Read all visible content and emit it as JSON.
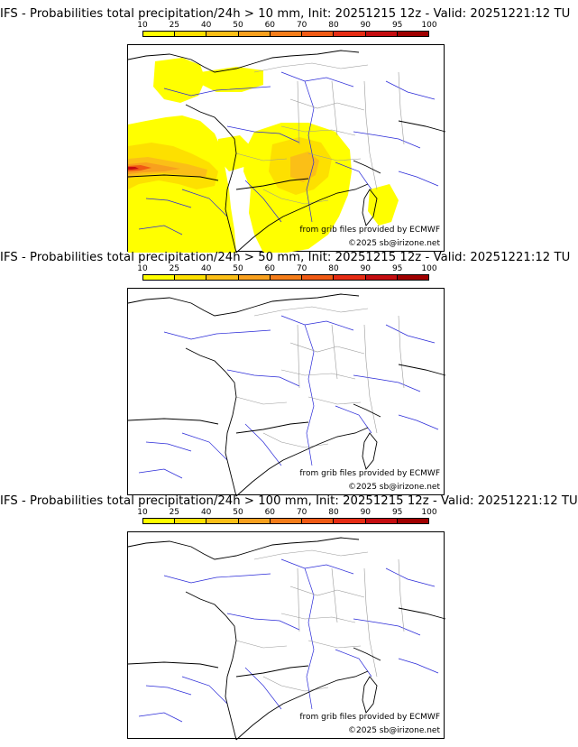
{
  "colorbar": {
    "ticks": [
      "10",
      "25",
      "40",
      "50",
      "60",
      "70",
      "80",
      "90",
      "95",
      "100"
    ],
    "colors": [
      "#ffff00",
      "#fde000",
      "#fbbf17",
      "#f8a01e",
      "#f57d1a",
      "#f05a14",
      "#e62c14",
      "#c50d10",
      "#a00000",
      "#6a0000"
    ]
  },
  "panels": [
    {
      "title": "IFS - Probabilities total precipitation/24h > 10 mm, Init: 20251215 12z - Valid: 20251221:12 TU",
      "source": "from grib files provided by ECMWF",
      "copyright": "©2025 sb@irizone.net"
    },
    {
      "title": "IFS - Probabilities total precipitation/24h > 50 mm, Init: 20251215 12z - Valid: 20251221:12 TU",
      "source": "from grib files provided by ECMWF",
      "copyright": "©2025 sb@irizone.net"
    },
    {
      "title": "IFS - Probabilities total precipitation/24h > 100 mm, Init: 20251215 12z - Valid: 20251221:12 TU",
      "source": "from grib files provided by ECMWF",
      "copyright": "©2025 sb@irizone.net"
    }
  ],
  "map_colors": {
    "coast": "#000000",
    "borders": "#9a9a9a",
    "rivers": "#2a2ad8"
  }
}
